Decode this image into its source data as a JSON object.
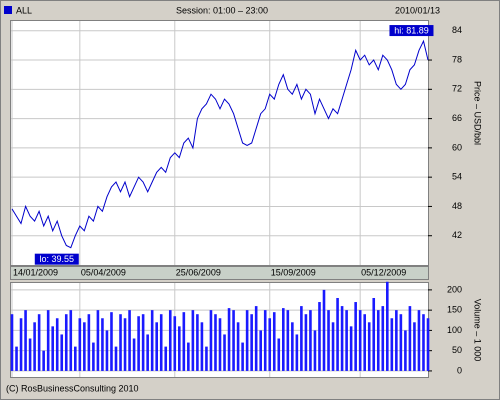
{
  "header": {
    "symbol": "ALL",
    "session": "Session: 01:00 – 23:00",
    "date": "2010/01/13"
  },
  "footer": "(C) RosBusinessConsulting 2010",
  "chart_data": [
    {
      "type": "line",
      "y_label": "Price – USD/bbl",
      "color": "#0000cc",
      "grid": true,
      "ylim": [
        36,
        86
      ],
      "yticks": [
        42,
        48,
        54,
        60,
        66,
        72,
        78,
        84
      ],
      "xlim": [
        0,
        92
      ],
      "xticks": [
        {
          "value": 0,
          "label": "14/01/2009"
        },
        {
          "value": 15,
          "label": "05/04/2009"
        },
        {
          "value": 36,
          "label": "25/06/2009"
        },
        {
          "value": 57,
          "label": "15/09/2009"
        },
        {
          "value": 77,
          "label": "05/12/2009"
        }
      ],
      "annotations": [
        {
          "text": "hi: 81.89",
          "value": 81.89,
          "x": 91
        },
        {
          "text": "lo: 39.55",
          "value": 39.55,
          "x": 13
        }
      ],
      "values": [
        47.5,
        46,
        44.5,
        48,
        46,
        45,
        47,
        44,
        46,
        43,
        45,
        42,
        40,
        39.55,
        42,
        44,
        43,
        46,
        45,
        48,
        47,
        50,
        52,
        53,
        51,
        53,
        50,
        52,
        54,
        53,
        51,
        53,
        55,
        56,
        55,
        58,
        59,
        58,
        61,
        62,
        60,
        66,
        68,
        69,
        71,
        70,
        68,
        70,
        69,
        67,
        64,
        61,
        60.5,
        61,
        64,
        67,
        68,
        71,
        70,
        73,
        75,
        72,
        71,
        73,
        70,
        72,
        71,
        67,
        70,
        68,
        66,
        68,
        67,
        70,
        73,
        76,
        80,
        78,
        79,
        77,
        78,
        76,
        79,
        78,
        76,
        73,
        72,
        73,
        76,
        77,
        80,
        81.89,
        78
      ]
    },
    {
      "type": "bar",
      "y_label": "Volume – 1 000",
      "color": "#1a1aff",
      "grid": true,
      "ylim": [
        -15,
        217
      ],
      "yticks": [
        0,
        50,
        100,
        150,
        200
      ],
      "xlim": [
        0,
        92
      ],
      "values": [
        140,
        60,
        130,
        150,
        80,
        120,
        140,
        50,
        150,
        110,
        130,
        90,
        140,
        150,
        60,
        130,
        120,
        140,
        70,
        150,
        130,
        100,
        145,
        60,
        140,
        130,
        150,
        80,
        135,
        140,
        90,
        150,
        120,
        140,
        60,
        150,
        135,
        110,
        145,
        70,
        150,
        140,
        120,
        60,
        150,
        140,
        130,
        90,
        155,
        150,
        120,
        70,
        150,
        140,
        160,
        100,
        150,
        130,
        145,
        80,
        155,
        150,
        120,
        90,
        160,
        140,
        150,
        100,
        170,
        200,
        150,
        120,
        180,
        160,
        150,
        110,
        170,
        150,
        140,
        120,
        180,
        150,
        160,
        220,
        130,
        150,
        140,
        100,
        160,
        120,
        150,
        140,
        130
      ]
    }
  ]
}
